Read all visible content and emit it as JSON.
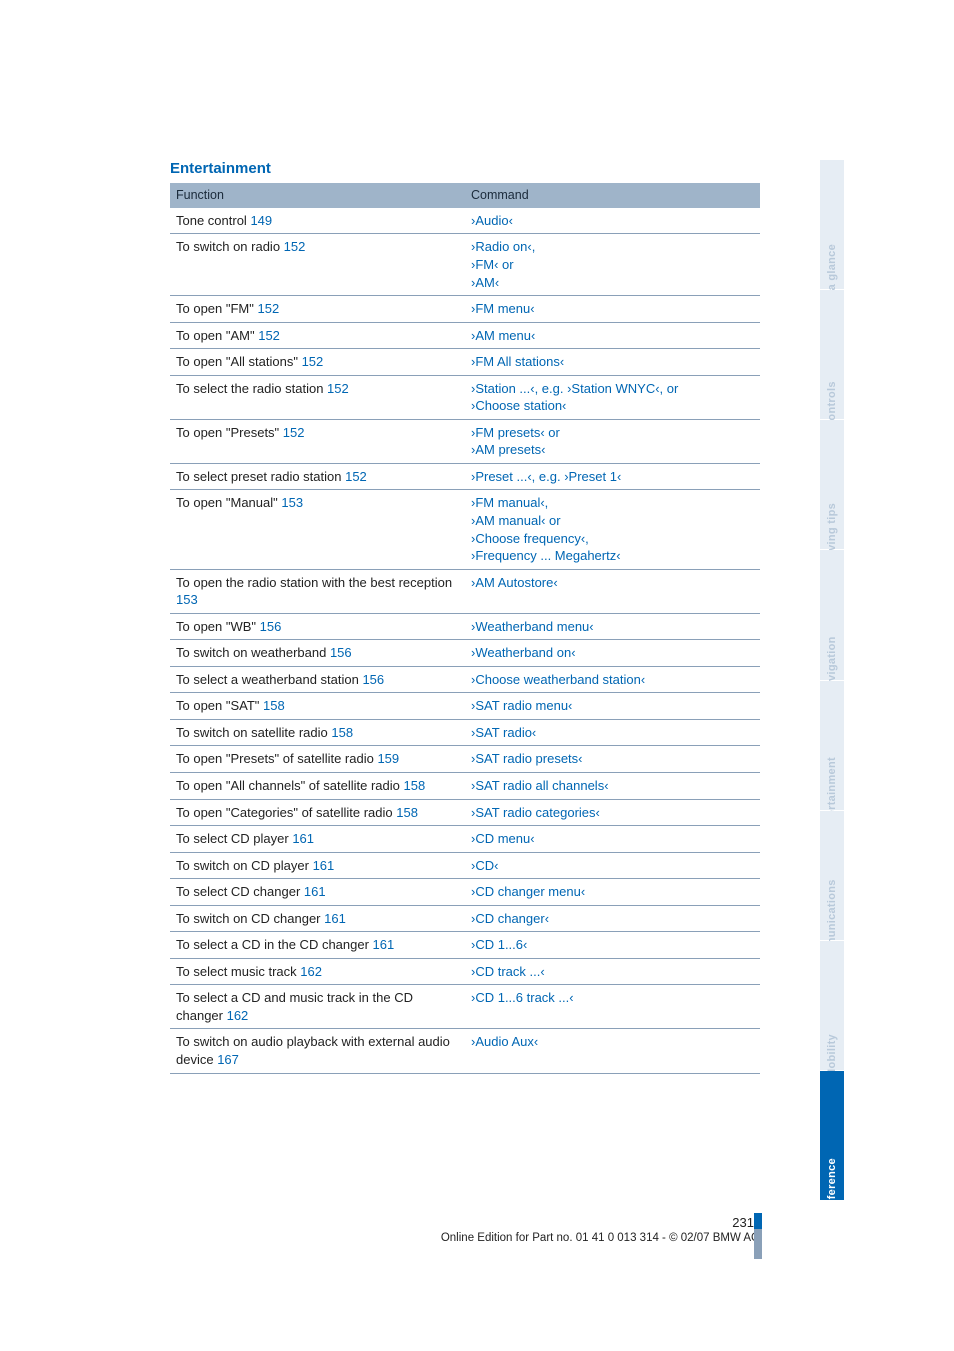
{
  "section_title": "Entertainment",
  "table": {
    "headers": {
      "function": "Function",
      "command": "Command"
    },
    "rows": [
      {
        "fn": "Tone control",
        "ref": "149",
        "cmds": [
          "›Audio‹"
        ]
      },
      {
        "fn": "To switch on radio",
        "ref": "152",
        "cmds": [
          "›Radio on‹,",
          "›FM‹ or",
          "›AM‹"
        ]
      },
      {
        "fn": "To open \"FM\"",
        "ref": "152",
        "cmds": [
          "›FM menu‹"
        ]
      },
      {
        "fn": "To open \"AM\"",
        "ref": "152",
        "cmds": [
          "›AM menu‹"
        ]
      },
      {
        "fn": "To open \"All stations\"",
        "ref": "152",
        "cmds": [
          "›FM All stations‹"
        ]
      },
      {
        "fn": "To select the radio station",
        "ref": "152",
        "cmds": [
          "›Station ...‹, e.g. ›Station WNYC‹, or",
          "›Choose station‹"
        ]
      },
      {
        "fn": "To open \"Presets\"",
        "ref": "152",
        "cmds": [
          "›FM presets‹ or",
          "›AM presets‹"
        ]
      },
      {
        "fn": "To select preset radio station",
        "ref": "152",
        "cmds": [
          "›Preset ...‹, e.g. ›Preset 1‹"
        ]
      },
      {
        "fn": "To open \"Manual\"",
        "ref": "153",
        "cmds": [
          "›FM manual‹,",
          "›AM manual‹ or",
          "›Choose frequency‹,",
          "›Frequency ... Megahertz‹"
        ]
      },
      {
        "fn": "To open the radio station with the best reception",
        "ref": "153",
        "cmds": [
          "›AM Autostore‹"
        ]
      },
      {
        "fn": "To open \"WB\"",
        "ref": "156",
        "cmds": [
          "›Weatherband menu‹"
        ]
      },
      {
        "fn": "To switch on weatherband",
        "ref": "156",
        "cmds": [
          "›Weatherband on‹"
        ]
      },
      {
        "fn": "To select a weatherband station",
        "ref": "156",
        "cmds": [
          "›Choose weatherband station‹"
        ]
      },
      {
        "fn": "To open \"SAT\"",
        "ref": "158",
        "cmds": [
          "›SAT radio menu‹"
        ]
      },
      {
        "fn": "To switch on satellite radio",
        "ref": "158",
        "cmds": [
          "›SAT radio‹"
        ]
      },
      {
        "fn": "To open \"Presets\" of satellite radio",
        "ref": "159",
        "cmds": [
          "›SAT radio presets‹"
        ]
      },
      {
        "fn": "To open \"All channels\" of satellite radio",
        "ref": "158",
        "cmds": [
          "›SAT radio all channels‹"
        ]
      },
      {
        "fn": "To open \"Categories\" of satellite radio",
        "ref": "158",
        "cmds": [
          "›SAT radio categories‹"
        ]
      },
      {
        "fn": "To select CD player",
        "ref": "161",
        "cmds": [
          "›CD menu‹"
        ]
      },
      {
        "fn": "To switch on CD player",
        "ref": "161",
        "cmds": [
          "›CD‹"
        ]
      },
      {
        "fn": "To select CD changer",
        "ref": "161",
        "cmds": [
          "›CD changer menu‹"
        ]
      },
      {
        "fn": "To switch on CD changer",
        "ref": "161",
        "cmds": [
          "›CD changer‹"
        ]
      },
      {
        "fn": "To select a CD in the CD changer",
        "ref": "161",
        "cmds": [
          "›CD 1...6‹"
        ]
      },
      {
        "fn": "To select music track",
        "ref": "162",
        "cmds": [
          "›CD track ...‹"
        ]
      },
      {
        "fn": "To select a CD and music track in the CD changer",
        "ref": "162",
        "cmds": [
          "›CD 1...6 track ...‹"
        ]
      },
      {
        "fn": "To switch on audio playback with external audio device",
        "ref": "167",
        "cmds": [
          "›Audio Aux‹"
        ]
      }
    ]
  },
  "sidebar": {
    "tabs": [
      {
        "label": "At a glance",
        "active": false
      },
      {
        "label": "Controls",
        "active": false
      },
      {
        "label": "Driving tips",
        "active": false
      },
      {
        "label": "Navigation",
        "active": false
      },
      {
        "label": "Entertainment",
        "active": false
      },
      {
        "label": "Communications",
        "active": false
      },
      {
        "label": "Mobility",
        "active": false
      },
      {
        "label": "Reference",
        "active": true
      }
    ]
  },
  "footer": {
    "page": "231",
    "edition": "Online Edition for Part no. 01 41 0 013 314 - © 02/07 BMW AG"
  },
  "colors": {
    "link": "#0066b3",
    "header_bg": "#9fb4c9",
    "row_border": "#8aa0b8",
    "tab_inactive_bg": "#e6edf4",
    "tab_inactive_text": "#b8c9da",
    "tab_active_bg": "#0066b3",
    "tab_active_text": "#ffffff"
  }
}
